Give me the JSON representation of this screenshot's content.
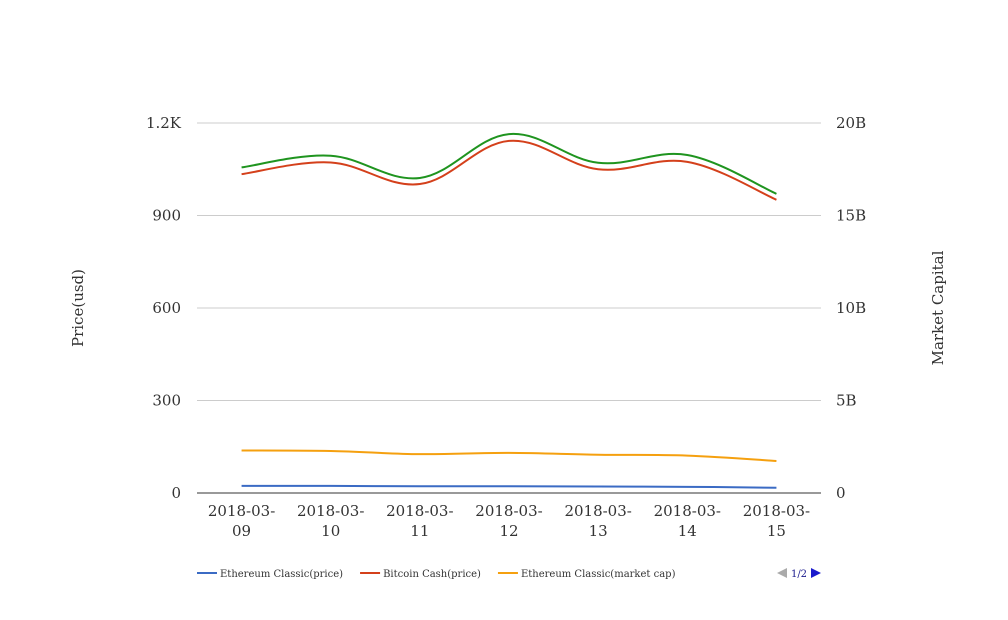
{
  "chart_data": {
    "type": "line",
    "categories": [
      "2018-03-09",
      "2018-03-10",
      "2018-03-11",
      "2018-03-12",
      "2018-03-13",
      "2018-03-14",
      "2018-03-15"
    ],
    "category_labels": [
      [
        "2018-03-",
        "09"
      ],
      [
        "2018-03-",
        "10"
      ],
      [
        "2018-03-",
        "11"
      ],
      [
        "2018-03-",
        "12"
      ],
      [
        "2018-03-",
        "13"
      ],
      [
        "2018-03-",
        "14"
      ],
      [
        "2018-03-",
        "15"
      ]
    ],
    "ylabel_left": "Price(usd)",
    "ylabel_right": "Market Capital",
    "ylim_left": [
      0,
      1200
    ],
    "ylim_right": [
      0,
      20000000000
    ],
    "left_ticks": [
      {
        "value": 0,
        "label": "0"
      },
      {
        "value": 300,
        "label": "300"
      },
      {
        "value": 600,
        "label": "600"
      },
      {
        "value": 900,
        "label": "900"
      },
      {
        "value": 1200,
        "label": "1.2K"
      }
    ],
    "right_ticks": [
      {
        "value": 0,
        "label": "0"
      },
      {
        "value": 5000000000,
        "label": "5B"
      },
      {
        "value": 10000000000,
        "label": "10B"
      },
      {
        "value": 15000000000,
        "label": "15B"
      },
      {
        "value": 20000000000,
        "label": "20B"
      }
    ],
    "grid": true,
    "legend_position": "bottom-left",
    "series": [
      {
        "name": "Ethereum Classic(price)",
        "axis": "left",
        "color": "#3b6bc4",
        "values": [
          23,
          23,
          22,
          22,
          21,
          20,
          17
        ]
      },
      {
        "name": "Bitcoin Cash(price)",
        "axis": "left",
        "color": "#d4401b",
        "values": [
          1034,
          1072,
          1002,
          1142,
          1050,
          1074,
          951
        ]
      },
      {
        "name": "Ethereum Classic(market cap)",
        "axis": "right",
        "color": "#f5a00f",
        "values": [
          2300000000,
          2270000000,
          2100000000,
          2170000000,
          2070000000,
          2020000000,
          1730000000
        ]
      },
      {
        "name": "",
        "axis": "right",
        "color": "#1f941f",
        "values": [
          17600000000,
          18230000000,
          17030000000,
          19400000000,
          17850000000,
          18270000000,
          16170000000
        ]
      }
    ],
    "legend_entries": [
      0,
      1,
      2
    ]
  },
  "legend": {
    "pager_label": "1/2",
    "prev_icon": "triangle-left-icon",
    "next_icon": "triangle-right-icon"
  },
  "colors": {
    "grid": "#cccccc",
    "axis": "#333333",
    "pager_active": "#1a1acc",
    "pager_inactive": "#aaaaaa"
  }
}
